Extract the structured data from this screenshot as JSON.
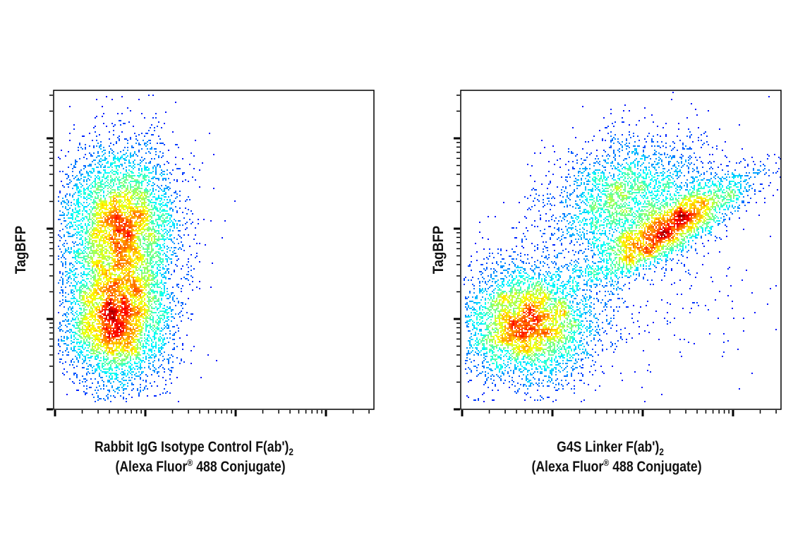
{
  "chart_data": [
    {
      "type": "scatter",
      "style": "density-colored flow cytometry dot plot",
      "x_scale": "log",
      "y_scale": "log",
      "xlim_decades": [
        0,
        3.55
      ],
      "ylim_decades": [
        0,
        3.53
      ],
      "tick_labels_shown": false,
      "grid": false,
      "ylabel": "TagBFP",
      "xlabel": {
        "line1": "Rabbit IgG Isotype Control F(ab')",
        "line1_sub": "2",
        "line2_a": "(Alexa Fluor",
        "line2_sup": "®",
        "line2_b": " 488 Conjugate)"
      },
      "populations": [
        {
          "n": 5000,
          "cx": 0.72,
          "cy": 2.03,
          "sx": 0.33,
          "sy": 0.45,
          "rho": 0
        },
        {
          "n": 4500,
          "cx": 0.68,
          "cy": 0.98,
          "sx": 0.3,
          "sy": 0.38,
          "rho": 0
        }
      ]
    },
    {
      "type": "scatter",
      "style": "density-colored flow cytometry dot plot",
      "x_scale": "log",
      "y_scale": "log",
      "xlim_decades": [
        0,
        3.55
      ],
      "ylim_decades": [
        0,
        3.53
      ],
      "tick_labels_shown": false,
      "grid": false,
      "ylabel": "TagBFP",
      "xlabel": {
        "line1": "G4S Linker F(ab')",
        "line1_sub": "2",
        "line2_a": "(Alexa Fluor",
        "line2_sup": "®",
        "line2_b": " 488 Conjugate)"
      },
      "populations": [
        {
          "n": 4500,
          "cx": 0.72,
          "cy": 0.95,
          "sx": 0.38,
          "sy": 0.33,
          "rho": 0
        },
        {
          "n": 3000,
          "cx": 2.3,
          "cy": 2.0,
          "sx": 0.45,
          "sy": 0.3,
          "rho": 0.85
        },
        {
          "n": 2500,
          "cx": 1.8,
          "cy": 2.35,
          "sx": 0.45,
          "sy": 0.35,
          "rho": 0.3
        },
        {
          "n": 300,
          "cx": 2.1,
          "cy": 1.4,
          "sx": 0.8,
          "sy": 0.6,
          "rho": 0
        }
      ]
    }
  ],
  "colormap": [
    "#0000ff",
    "#00ffff",
    "#00ff00",
    "#ffff00",
    "#ff0000"
  ]
}
